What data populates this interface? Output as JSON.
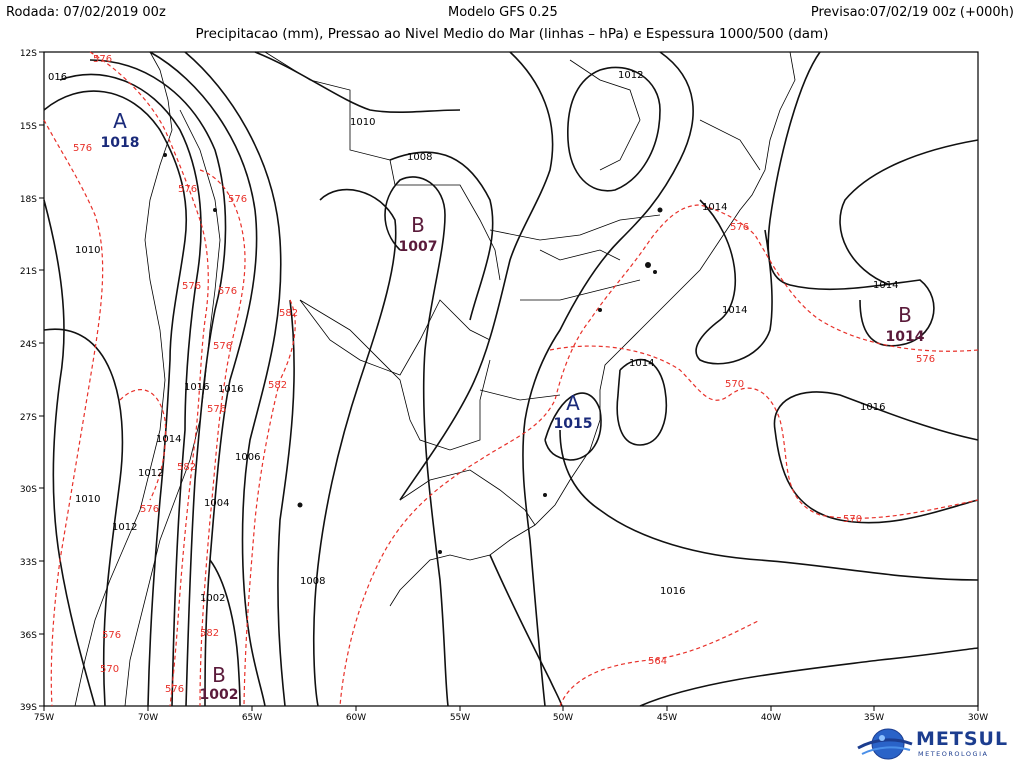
{
  "header": {
    "rodada": "Rodada: 07/02/2019 00z",
    "modelo": "Modelo GFS 0.25",
    "previsao": "Previsao:07/02/19 00z (+000h)",
    "subtitle": "Precipitacao (mm), Pressao ao Nivel Medio do Mar (linhas – hPa) e Espessura 1000/500 (dam)"
  },
  "axes": {
    "lon_ticks": [
      "75W",
      "70W",
      "65W",
      "60W",
      "55W",
      "50W",
      "45W",
      "40W",
      "35W",
      "30W"
    ],
    "lat_ticks": [
      "12S",
      "15S",
      "18S",
      "21S",
      "24S",
      "27S",
      "30S",
      "33S",
      "36S",
      "39S"
    ]
  },
  "pressure_centers": [
    {
      "type": "A",
      "value": "1018",
      "color": "#1a2a7a"
    },
    {
      "type": "B",
      "value": "1007",
      "color": "#5a1a3a"
    },
    {
      "type": "B",
      "value": "1014",
      "color": "#5a1a3a"
    },
    {
      "type": "A",
      "value": "1015",
      "color": "#1a2a7a"
    },
    {
      "type": "B",
      "value": "1002",
      "color": "#5a1a3a"
    }
  ],
  "isobar_labels": [
    "016",
    "1010",
    "1008",
    "1012",
    "1014",
    "1014",
    "1014",
    "1014",
    "1016",
    "1016",
    "1010",
    "1016",
    "1014",
    "1012",
    "1012",
    "1010",
    "1006",
    "1004",
    "1002",
    "1008",
    "1016"
  ],
  "thickness_labels": [
    "576",
    "576",
    "576",
    "576",
    "576",
    "576",
    "576",
    "576",
    "582",
    "582",
    "576",
    "582",
    "576",
    "570",
    "576",
    "576",
    "570",
    "570",
    "582",
    "564",
    "576"
  ],
  "logo": {
    "name": "METSUL",
    "sub": "METEOROLOGIA",
    "color": "#1c3d8f"
  }
}
